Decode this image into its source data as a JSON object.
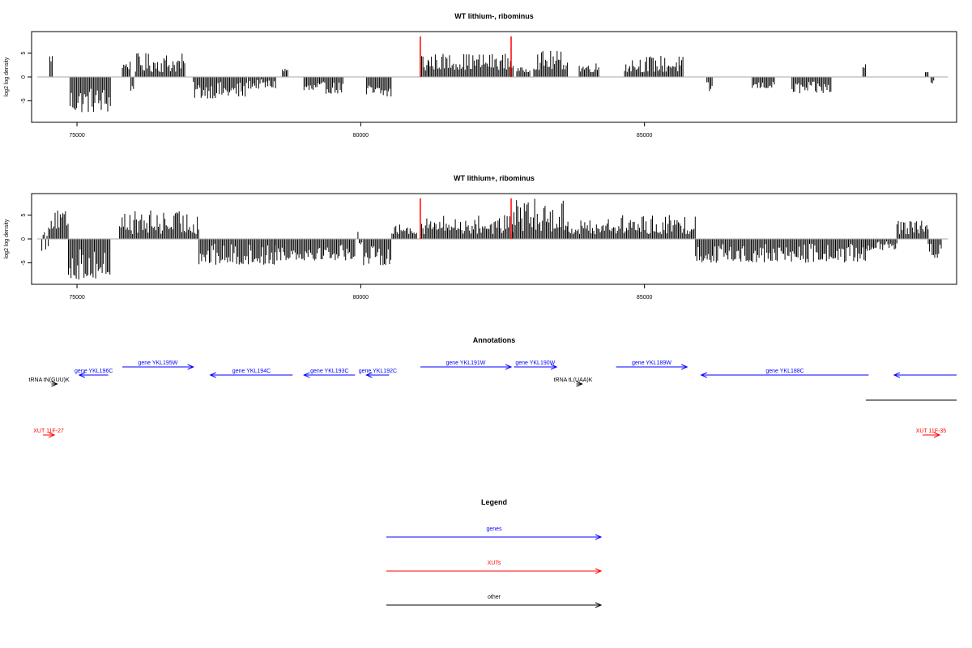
{
  "chart_data": [
    {
      "type": "bar",
      "title": "WT lithium-, ribominus",
      "xlabel": "",
      "ylabel": "log2 log density",
      "xlim": [
        74200,
        90500
      ],
      "ylim": [
        -9.5,
        9.5
      ],
      "x_ticks": [
        75000,
        80000,
        85000
      ],
      "x_tick_labels": [
        "75000",
        "80000",
        "85000"
      ],
      "y_ticks": [
        -5,
        0,
        5
      ],
      "y_tick_labels": [
        "-5",
        "0",
        "5"
      ],
      "baseline": {
        "from": 74300,
        "to": 90350,
        "color": "#aaaaaa"
      },
      "markers": [
        {
          "x": 81050,
          "color": "#ff0000"
        },
        {
          "x": 82650,
          "color": "#ff0000"
        }
      ],
      "series": [
        {
          "color": "#000000",
          "segments": [
            {
              "from": 74520,
              "to": 74580,
              "min": 3,
              "max": 5
            },
            {
              "from": 74880,
              "to": 75600,
              "min": -7.5,
              "max": -2
            },
            {
              "from": 75800,
              "to": 75950,
              "min": 1.5,
              "max": 3.5
            },
            {
              "from": 75950,
              "to": 76000,
              "min": -3,
              "max": -1
            },
            {
              "from": 76030,
              "to": 76900,
              "min": 1,
              "max": 5
            },
            {
              "from": 77050,
              "to": 78000,
              "min": -4.5,
              "max": -1
            },
            {
              "from": 78020,
              "to": 78500,
              "min": -2.5,
              "max": -0.5
            },
            {
              "from": 78620,
              "to": 78720,
              "min": 1,
              "max": 2
            },
            {
              "from": 79000,
              "to": 79700,
              "min": -3.5,
              "max": -1
            },
            {
              "from": 80100,
              "to": 80550,
              "min": -4.5,
              "max": -1.5
            },
            {
              "from": 81050,
              "to": 81200,
              "min": 1,
              "max": 5.5
            },
            {
              "from": 81200,
              "to": 82700,
              "min": 1.5,
              "max": 5
            },
            {
              "from": 82750,
              "to": 83000,
              "min": 1,
              "max": 2
            },
            {
              "from": 83050,
              "to": 83650,
              "min": 1.5,
              "max": 5.5
            },
            {
              "from": 83850,
              "to": 84200,
              "min": 1,
              "max": 3
            },
            {
              "from": 84650,
              "to": 85700,
              "min": 1,
              "max": 4.5
            },
            {
              "from": 86100,
              "to": 86200,
              "min": -3.5,
              "max": -1
            },
            {
              "from": 86900,
              "to": 87300,
              "min": -2.5,
              "max": -1
            },
            {
              "from": 87600,
              "to": 88300,
              "min": -3.5,
              "max": -1
            },
            {
              "from": 88850,
              "to": 88900,
              "min": 1,
              "max": 3
            },
            {
              "from": 89950,
              "to": 90000,
              "min": 1,
              "max": 1
            },
            {
              "from": 90050,
              "to": 90100,
              "min": -1.5,
              "max": -0.5
            }
          ]
        }
      ]
    },
    {
      "type": "bar",
      "title": "WT lithium+, ribominus",
      "xlabel": "",
      "ylabel": "log2 log density",
      "xlim": [
        74200,
        90500
      ],
      "ylim": [
        -9.5,
        9.5
      ],
      "x_ticks": [
        75000,
        80000,
        85000
      ],
      "x_tick_labels": [
        "75000",
        "80000",
        "85000"
      ],
      "y_ticks": [
        -5,
        0,
        5
      ],
      "y_tick_labels": [
        "-5",
        "0",
        "5"
      ],
      "baseline": {
        "from": 74300,
        "to": 90350,
        "color": "#aaaaaa"
      },
      "markers": [
        {
          "x": 81050,
          "color": "#ff0000"
        },
        {
          "x": 82650,
          "color": "#ff0000"
        }
      ],
      "series": [
        {
          "color": "#000000",
          "segments": [
            {
              "from": 74380,
              "to": 74500,
              "min": -2.5,
              "max": 3
            },
            {
              "from": 74500,
              "to": 74850,
              "min": 2,
              "max": 6
            },
            {
              "from": 74850,
              "to": 75600,
              "min": -8.5,
              "max": -2
            },
            {
              "from": 75750,
              "to": 77150,
              "min": 1,
              "max": 6
            },
            {
              "from": 77150,
              "to": 78500,
              "min": -5.5,
              "max": -1
            },
            {
              "from": 78500,
              "to": 79900,
              "min": -4.5,
              "max": -1
            },
            {
              "from": 79950,
              "to": 80050,
              "min": -1.5,
              "max": 2
            },
            {
              "from": 80050,
              "to": 80550,
              "min": -5.5,
              "max": -1.5
            },
            {
              "from": 80550,
              "to": 81000,
              "min": 1,
              "max": 3
            },
            {
              "from": 81050,
              "to": 82700,
              "min": 1,
              "max": 5
            },
            {
              "from": 82700,
              "to": 83650,
              "min": 1.5,
              "max": 8.5
            },
            {
              "from": 83650,
              "to": 84250,
              "min": 1,
              "max": 4
            },
            {
              "from": 84250,
              "to": 85900,
              "min": 1,
              "max": 5
            },
            {
              "from": 85900,
              "to": 88900,
              "min": -5,
              "max": -1
            },
            {
              "from": 88900,
              "to": 89450,
              "min": -2.5,
              "max": -0.5
            },
            {
              "from": 89450,
              "to": 90000,
              "min": 1,
              "max": 4
            },
            {
              "from": 90000,
              "to": 90250,
              "min": -4,
              "max": -1
            }
          ]
        }
      ]
    }
  ],
  "annotations": {
    "title": "Annotations",
    "items": [
      {
        "label": "gene YKL196C",
        "strand": "-",
        "color": "#0000ff",
        "from": 75040,
        "to": 75550,
        "row": 2
      },
      {
        "label": "gene YKL195W",
        "strand": "+",
        "color": "#0000ff",
        "from": 75800,
        "to": 77050,
        "row": 1
      },
      {
        "label": "gene YKL194C",
        "strand": "-",
        "color": "#0000ff",
        "from": 77350,
        "to": 78800,
        "row": 2
      },
      {
        "label": "gene YKL193C",
        "strand": "-",
        "color": "#0000ff",
        "from": 79000,
        "to": 79900,
        "row": 2
      },
      {
        "label": "gene YKL192C",
        "strand": "-",
        "color": "#0000ff",
        "from": 80100,
        "to": 80500,
        "row": 2
      },
      {
        "label": "gene YKL191W",
        "strand": "+",
        "color": "#0000ff",
        "from": 81050,
        "to": 82650,
        "row": 1
      },
      {
        "label": "gene YKL190W",
        "strand": "+",
        "color": "#0000ff",
        "from": 82700,
        "to": 83450,
        "row": 1
      },
      {
        "label": "gene YKL189W",
        "strand": "+",
        "color": "#0000ff",
        "from": 84500,
        "to": 85750,
        "row": 1
      },
      {
        "label": "gene YKL188C",
        "strand": "-",
        "color": "#0000ff",
        "from": 86000,
        "to": 88950,
        "row": 2
      },
      {
        "label": "",
        "strand": "-",
        "color": "#0000ff",
        "from": 89400,
        "to": 90600,
        "row": 2
      },
      {
        "label": "tRNA tN(GUU)K",
        "strand": "+",
        "color": "#000000",
        "from": 74550,
        "to": 74650,
        "row": 3
      },
      {
        "label": "tRNA tL(UAA)K",
        "strand": "+",
        "color": "#000000",
        "from": 83800,
        "to": 83900,
        "row": 3
      },
      {
        "label": "",
        "strand": "none",
        "color": "#000000",
        "from": 88900,
        "to": 90600,
        "row": 4
      },
      {
        "label": "XUT 11F-27",
        "strand": "+",
        "color": "#ff0000",
        "from": 74400,
        "to": 74600,
        "row": 5
      },
      {
        "label": "XUT 11F-35",
        "strand": "+",
        "color": "#ff0000",
        "from": 89900,
        "to": 90200,
        "row": 5
      }
    ]
  },
  "legend": {
    "title": "Legend",
    "items": [
      {
        "label": "genes",
        "color": "#0000ff"
      },
      {
        "label": "XUTs",
        "color": "#ff0000"
      },
      {
        "label": "other",
        "color": "#000000"
      }
    ]
  }
}
